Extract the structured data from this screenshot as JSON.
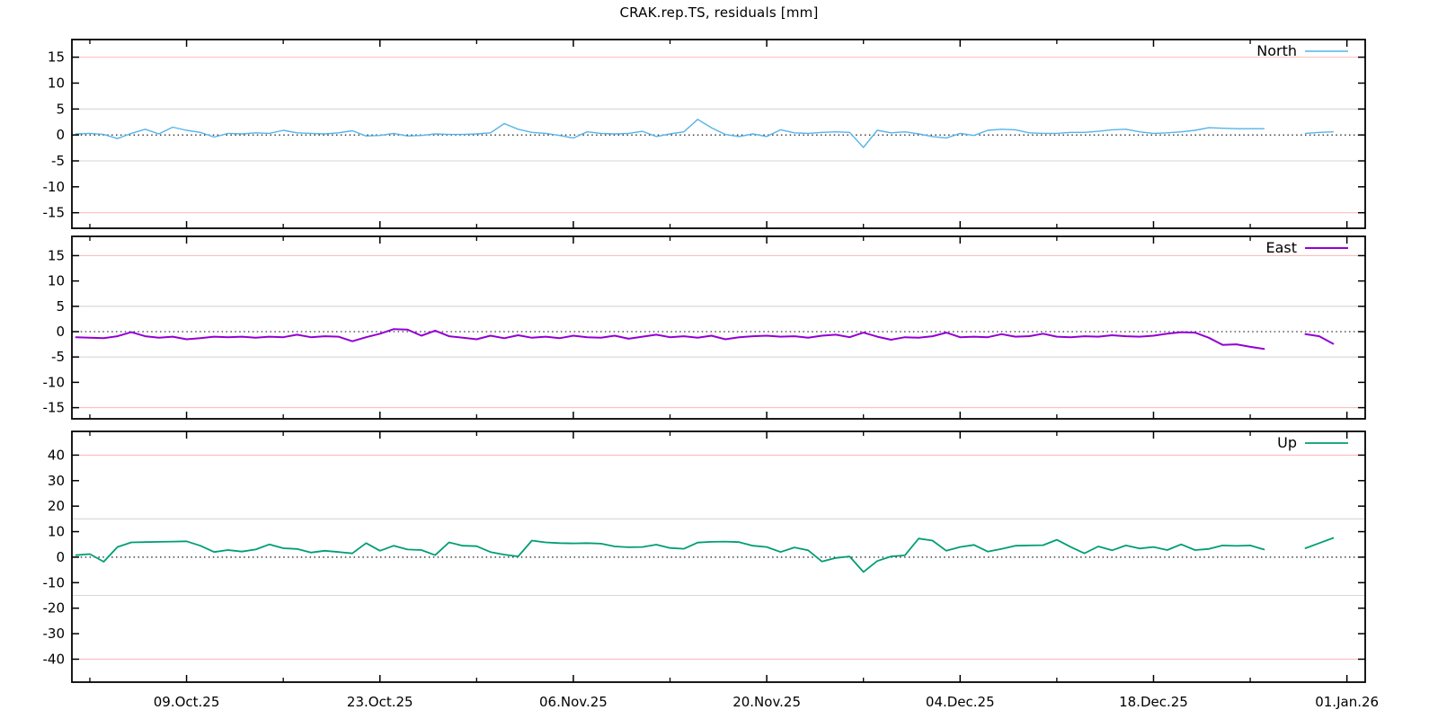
{
  "chart_data": {
    "type": "line",
    "title": "CRAK.rep.TS, residuals [mm]",
    "unit": "mm",
    "grid": "threshold lines at inner (gray) and outer (pink) limits, dotted zero line",
    "legend_position": "top-right inside each panel",
    "x_axis": {
      "tick_labels": [
        "09.Oct.25",
        "23.Oct.25",
        "06.Nov.25",
        "20.Nov.25",
        "04.Dec.25",
        "18.Dec.25",
        "01.Jan.26"
      ],
      "label_days": [
        7,
        21,
        35,
        49,
        63,
        77,
        91
      ],
      "minor_days": [
        0,
        14,
        28,
        42,
        56,
        70,
        84
      ],
      "start_day": -1,
      "gap_days": [
        86,
        87
      ]
    },
    "colors": {
      "threshold_outer": "#ffbdbd",
      "threshold_inner": "#d6d6d6",
      "zero_line": "#000000",
      "axis": "#000000"
    },
    "panels": [
      {
        "name": "North",
        "color": "#56b4e9",
        "line_width": 1.4,
        "ylim": [
          -18.0,
          18.4
        ],
        "yticks": [
          15,
          10,
          5,
          0,
          -5,
          -10,
          -15
        ],
        "thresholds": {
          "inner": 5,
          "outer": 15
        },
        "values": [
          0.2,
          0.3,
          0.1,
          -0.7,
          0.3,
          1.1,
          0.2,
          1.5,
          0.9,
          0.5,
          -0.4,
          0.3,
          0.2,
          0.4,
          0.3,
          0.9,
          0.4,
          0.3,
          0.2,
          0.4,
          0.8,
          -0.2,
          -0.1,
          0.3,
          -0.2,
          -0.1,
          0.2,
          0.1,
          0.1,
          0.2,
          0.4,
          2.2,
          1.1,
          0.5,
          0.3,
          -0.1,
          -0.6,
          0.6,
          0.3,
          0.2,
          0.3,
          0.7,
          -0.3,
          0.2,
          0.6,
          3.0,
          1.4,
          0.1,
          -0.3,
          0.2,
          -0.3,
          1.0,
          0.4,
          0.3,
          0.5,
          0.6,
          0.5,
          -2.4,
          0.9,
          0.4,
          0.6,
          0.2,
          -0.3,
          -0.6,
          0.3,
          -0.1,
          0.9,
          1.1,
          1.0,
          0.4,
          0.3,
          0.3,
          0.5,
          0.5,
          0.7,
          1.0,
          1.1,
          0.6,
          0.3,
          0.4,
          0.6,
          0.9,
          1.4,
          1.3,
          1.2,
          1.2,
          1.2,
          null,
          null,
          0.3,
          0.5,
          0.6
        ]
      },
      {
        "name": "East",
        "color": "#9400d3",
        "line_width": 2.0,
        "ylim": [
          -17.2,
          18.8
        ],
        "yticks": [
          15,
          10,
          5,
          0,
          -5,
          -10,
          -15
        ],
        "thresholds": {
          "inner": 5,
          "outer": 15
        },
        "values": [
          -1.1,
          -1.2,
          -1.3,
          -0.9,
          -0.1,
          -0.9,
          -1.2,
          -1.0,
          -1.5,
          -1.3,
          -1.0,
          -1.1,
          -1.0,
          -1.2,
          -1.0,
          -1.1,
          -0.6,
          -1.1,
          -0.9,
          -1.0,
          -1.9,
          -1.1,
          -0.4,
          0.5,
          0.4,
          -0.8,
          0.2,
          -0.9,
          -1.2,
          -1.5,
          -0.8,
          -1.3,
          -0.7,
          -1.2,
          -1.0,
          -1.3,
          -0.8,
          -1.1,
          -1.2,
          -0.8,
          -1.4,
          -1.0,
          -0.6,
          -1.1,
          -0.9,
          -1.2,
          -0.8,
          -1.5,
          -1.1,
          -0.9,
          -0.8,
          -1.0,
          -0.9,
          -1.2,
          -0.8,
          -0.6,
          -1.1,
          -0.2,
          -1.0,
          -1.6,
          -1.1,
          -1.2,
          -0.9,
          -0.2,
          -1.1,
          -1.0,
          -1.1,
          -0.5,
          -1.0,
          -0.9,
          -0.4,
          -1.0,
          -1.1,
          -0.9,
          -1.0,
          -0.7,
          -0.9,
          -1.0,
          -0.8,
          -0.4,
          -0.1,
          -0.2,
          -1.2,
          -2.6,
          -2.5,
          -3.0,
          -3.4,
          null,
          null,
          -0.5,
          -0.9,
          -2.4
        ]
      },
      {
        "name": "Up",
        "color": "#009e73",
        "line_width": 1.8,
        "ylim": [
          -49.0,
          49.3
        ],
        "yticks": [
          40,
          30,
          20,
          10,
          0,
          -10,
          -20,
          -30,
          -40
        ],
        "thresholds": {
          "inner": 15,
          "outer": 40
        },
        "values": [
          0.8,
          1.2,
          -1.8,
          4.0,
          5.8,
          5.9,
          6.0,
          6.1,
          6.2,
          4.5,
          2.0,
          2.8,
          2.2,
          3.0,
          5.0,
          3.5,
          3.2,
          1.8,
          2.5,
          2.0,
          1.5,
          5.5,
          2.5,
          4.5,
          3.0,
          2.8,
          0.8,
          5.8,
          4.5,
          4.3,
          2.0,
          1.0,
          0.3,
          6.5,
          5.8,
          5.5,
          5.4,
          5.5,
          5.3,
          4.2,
          3.9,
          4.0,
          4.9,
          3.6,
          3.3,
          5.7,
          6.0,
          6.1,
          5.9,
          4.5,
          4.0,
          2.0,
          3.8,
          2.7,
          -1.7,
          -0.3,
          0.3,
          -5.8,
          -1.5,
          0.3,
          0.7,
          7.3,
          6.5,
          2.5,
          4.0,
          4.8,
          2.2,
          3.2,
          4.5,
          4.6,
          4.7,
          6.8,
          4.0,
          1.5,
          4.2,
          2.7,
          4.6,
          3.4,
          4.0,
          2.8,
          5.0,
          2.8,
          3.2,
          4.6,
          4.4,
          4.6,
          3.0,
          null,
          null,
          3.5,
          5.5,
          7.5
        ]
      }
    ]
  }
}
